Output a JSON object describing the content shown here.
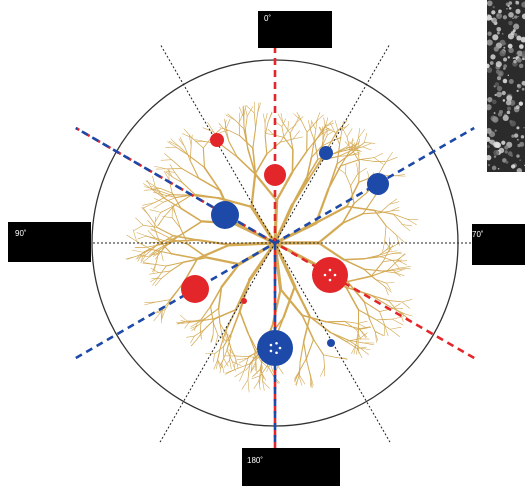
{
  "angle_labels": {
    "top": "0˚",
    "left": "90˚",
    "right": "70˚",
    "bottom": "180˚"
  },
  "colors": {
    "dendrite": "#d4aa55",
    "red": "#e3262a",
    "blue": "#1d49a8",
    "black_line": "#222222",
    "circle": "#333333"
  },
  "sites": [
    {
      "color": "red",
      "dots": 0
    },
    {
      "color": "blue",
      "dots": 0
    },
    {
      "color": "red",
      "dots": 0
    },
    {
      "color": "blue",
      "dots": 0
    },
    {
      "color": "blue",
      "dots": 0
    },
    {
      "color": "red",
      "dots": 4
    },
    {
      "color": "red",
      "dots": 0
    },
    {
      "color": "blue",
      "dots": 5
    },
    {
      "color": "blue",
      "dots": 0
    },
    {
      "color": "red",
      "dots": 0
    }
  ],
  "icons": {
    "micrograph": "microscopy-inset-image"
  }
}
